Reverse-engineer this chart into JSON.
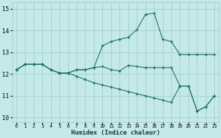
{
  "xlabel": "Humidex (Indice chaleur)",
  "background_color": "#c5e8e8",
  "grid_color": "#9ecece",
  "line_color": "#1a7060",
  "xlim": [
    -0.5,
    23.5
  ],
  "ylim": [
    9.8,
    15.3
  ],
  "yticks": [
    10,
    11,
    12,
    13,
    14,
    15
  ],
  "xticks": [
    0,
    1,
    2,
    3,
    4,
    5,
    6,
    7,
    8,
    9,
    10,
    11,
    12,
    13,
    14,
    15,
    16,
    17,
    18,
    19,
    20,
    21,
    22,
    23
  ],
  "series1_x": [
    0,
    1,
    2,
    3,
    4,
    5,
    6,
    7,
    8,
    9,
    10,
    11,
    12,
    13,
    14,
    15,
    16,
    17,
    18,
    19,
    20,
    21,
    22,
    23
  ],
  "series1_y": [
    12.2,
    12.45,
    12.45,
    12.45,
    12.2,
    12.05,
    12.05,
    12.2,
    12.2,
    12.3,
    13.3,
    13.5,
    13.6,
    13.7,
    14.05,
    14.75,
    14.8,
    13.6,
    13.5,
    12.9,
    12.9,
    12.9,
    12.9,
    12.9
  ],
  "series2_x": [
    0,
    1,
    2,
    3,
    4,
    5,
    6,
    7,
    8,
    9,
    10,
    11,
    12,
    13,
    14,
    15,
    16,
    17,
    18,
    19,
    20,
    21,
    22,
    23
  ],
  "series2_y": [
    12.2,
    12.45,
    12.45,
    12.45,
    12.2,
    12.05,
    12.05,
    12.2,
    12.2,
    12.3,
    12.35,
    12.2,
    12.15,
    12.4,
    12.35,
    12.3,
    12.3,
    12.3,
    12.3,
    11.45,
    11.45,
    10.3,
    10.5,
    11.0
  ],
  "series3_x": [
    0,
    1,
    2,
    3,
    4,
    5,
    6,
    7,
    8,
    9,
    10,
    11,
    12,
    13,
    14,
    15,
    16,
    17,
    18,
    19,
    20,
    21,
    22,
    23
  ],
  "series3_y": [
    12.2,
    12.45,
    12.45,
    12.45,
    12.2,
    12.05,
    12.05,
    11.9,
    11.75,
    11.6,
    11.5,
    11.4,
    11.3,
    11.2,
    11.1,
    11.0,
    10.9,
    10.8,
    10.7,
    11.45,
    11.45,
    10.3,
    10.5,
    11.0
  ]
}
